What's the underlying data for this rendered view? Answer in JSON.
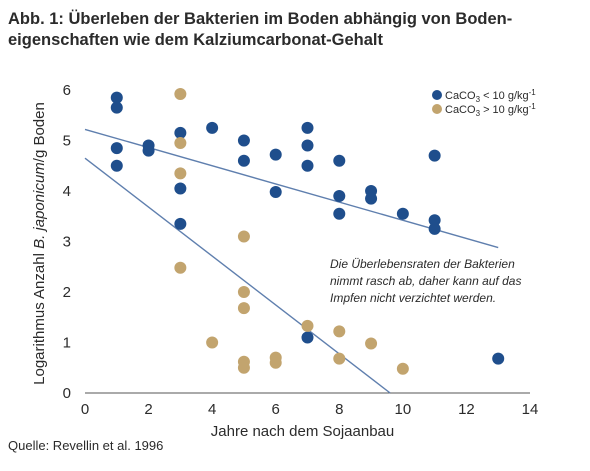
{
  "title": {
    "line1": "Abb. 1: Überleben der Bakterien im Boden abhängig von Boden-",
    "line2": "eigenschaften wie dem Kalziumcarbonat-Gehalt"
  },
  "source": "Quelle: Revellin et al. 1996",
  "chart_data": {
    "type": "scatter",
    "xlabel": "Jahre nach dem Sojaanbau",
    "ylabel": {
      "prefix": "Logarithmus Anzahl ",
      "italic": "B. japonicum",
      "suffix": "/g Boden"
    },
    "xlim": [
      0,
      14
    ],
    "ylim": [
      0,
      6
    ],
    "xticks": [
      "0",
      "2",
      "4",
      "6",
      "8",
      "10",
      "12",
      "14"
    ],
    "yticks": [
      "0",
      "1",
      "2",
      "3",
      "4",
      "5",
      "6"
    ],
    "grid": false,
    "legend_position": "top-right",
    "annotation": [
      "Die Überlebensraten der Bakterien",
      "nimmt rasch ab, daher kann auf das",
      "Impfen nicht verzichtet werden."
    ],
    "series": [
      {
        "legend": {
          "base": "CaCO",
          "sub": "3",
          "rel": " < 10 g/kg",
          "sup": "-1"
        },
        "color": "#1f4e8c",
        "points": [
          [
            1,
            5.85
          ],
          [
            1,
            5.65
          ],
          [
            1,
            4.85
          ],
          [
            1,
            4.5
          ],
          [
            2,
            4.9
          ],
          [
            2,
            4.8
          ],
          [
            3,
            5.15
          ],
          [
            3,
            4.05
          ],
          [
            3,
            3.35
          ],
          [
            4,
            5.25
          ],
          [
            5,
            5.0
          ],
          [
            5,
            4.6
          ],
          [
            6,
            4.72
          ],
          [
            6,
            3.98
          ],
          [
            7,
            5.25
          ],
          [
            7,
            4.9
          ],
          [
            7,
            4.5
          ],
          [
            7,
            1.1
          ],
          [
            8,
            4.6
          ],
          [
            8,
            3.9
          ],
          [
            8,
            3.55
          ],
          [
            9,
            4.0
          ],
          [
            9,
            3.85
          ],
          [
            10,
            3.55
          ],
          [
            11,
            4.7
          ],
          [
            11,
            3.42
          ],
          [
            11,
            3.25
          ],
          [
            13,
            0.68
          ]
        ],
        "trend": [
          [
            0,
            5.22
          ],
          [
            13,
            2.88
          ]
        ]
      },
      {
        "legend": {
          "base": "CaCO",
          "sub": "3",
          "rel": " > 10 g/kg",
          "sup": "-1"
        },
        "color": "#c2a46e",
        "points": [
          [
            3,
            5.92
          ],
          [
            3,
            4.95
          ],
          [
            3,
            4.35
          ],
          [
            3,
            2.48
          ],
          [
            4,
            1.0
          ],
          [
            5,
            3.1
          ],
          [
            5,
            2.0
          ],
          [
            5,
            1.68
          ],
          [
            5,
            0.62
          ],
          [
            5,
            0.5
          ],
          [
            6,
            0.7
          ],
          [
            6,
            0.6
          ],
          [
            7,
            1.33
          ],
          [
            8,
            1.22
          ],
          [
            8,
            0.68
          ],
          [
            9,
            0.98
          ],
          [
            10,
            0.48
          ]
        ],
        "trend": [
          [
            0,
            4.65
          ],
          [
            9.6,
            0
          ]
        ]
      }
    ]
  }
}
